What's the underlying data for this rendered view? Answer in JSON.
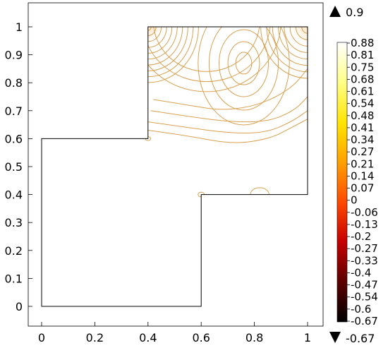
{
  "chart_data": {
    "type": "contour",
    "title": "",
    "xlabel": "",
    "ylabel": "",
    "x_ticks": [
      0,
      0.2,
      0.4,
      0.6,
      0.8,
      1
    ],
    "y_ticks": [
      0,
      0.1,
      0.2,
      0.3,
      0.4,
      0.5,
      0.6,
      0.7,
      0.8,
      0.9,
      1
    ],
    "x_tick_labels": [
      "0",
      "0.2",
      "0.4",
      "0.6",
      "0.8",
      "1"
    ],
    "y_tick_labels": [
      "0",
      "0.1",
      "0.2",
      "0.3",
      "0.4",
      "0.5",
      "0.6",
      "0.7",
      "0.8",
      "0.9",
      "1"
    ],
    "xlim": [
      -0.05,
      1.05
    ],
    "ylim": [
      -0.08,
      1.07
    ],
    "domain_outline": [
      [
        0,
        0
      ],
      [
        0.6,
        0
      ],
      [
        0.6,
        0.4
      ],
      [
        1,
        0.4
      ],
      [
        1,
        1
      ],
      [
        0.4,
        1
      ],
      [
        0.4,
        0.6
      ],
      [
        0,
        0.6
      ],
      [
        0,
        0
      ]
    ],
    "max_value": 0.9,
    "min_value": -0.67,
    "max_label": "0.9",
    "min_label": "-0.67",
    "colorbar_ticks": [
      "0.88",
      "0.81",
      "0.75",
      "0.68",
      "0.61",
      "0.54",
      "0.48",
      "0.41",
      "0.34",
      "0.27",
      "0.21",
      "0.14",
      "0.07",
      "0",
      "-0.06",
      "-0.13",
      "-0.2",
      "-0.27",
      "-0.33",
      "-0.4",
      "-0.47",
      "-0.54",
      "-0.6",
      "-0.67"
    ],
    "colorbar_range": [
      -0.67,
      0.88
    ],
    "colormap": [
      "#000000",
      "#5a0000",
      "#c80000",
      "#ff4a00",
      "#ffa000",
      "#ffe400",
      "#ffff8a",
      "#ffffff"
    ],
    "contour_color": "#d9a050",
    "contours": {
      "top_left_corner_rings": [
        0.012,
        0.03,
        0.05,
        0.07,
        0.09,
        0.11,
        0.13,
        0.15,
        0.17,
        0.19
      ],
      "top_right_corner_rings": [
        0.02,
        0.04,
        0.06,
        0.08,
        0.1,
        0.12,
        0.14,
        0.16
      ],
      "central_peak": {
        "x": 0.76,
        "y": 0.87
      },
      "central_rings": [
        0.03,
        0.055,
        0.08,
        0.105,
        0.13
      ],
      "bands": [
        [
          [
            0.42,
            0.74
          ],
          [
            0.55,
            0.72
          ],
          [
            0.68,
            0.7
          ],
          [
            0.82,
            0.72
          ],
          [
            0.94,
            0.78
          ],
          [
            1,
            0.85
          ]
        ],
        [
          [
            0.41,
            0.7
          ],
          [
            0.55,
            0.68
          ],
          [
            0.7,
            0.66
          ],
          [
            0.85,
            0.66
          ],
          [
            0.95,
            0.7
          ],
          [
            1,
            0.75
          ]
        ],
        [
          [
            0.4,
            0.66
          ],
          [
            0.55,
            0.64
          ],
          [
            0.7,
            0.62
          ],
          [
            0.84,
            0.62
          ],
          [
            0.94,
            0.66
          ],
          [
            1,
            0.7
          ]
        ],
        [
          [
            0.4,
            0.63
          ],
          [
            0.55,
            0.61
          ],
          [
            0.72,
            0.58
          ],
          [
            0.86,
            0.6
          ],
          [
            0.94,
            0.64
          ],
          [
            1,
            0.67
          ]
        ]
      ],
      "bottom_bumps": [
        {
          "x": 0.82,
          "y": 0.4,
          "r": 0.035
        },
        {
          "x": 0.6,
          "y": 0.4,
          "r": 0.012
        },
        {
          "x": 0.4,
          "y": 0.6,
          "r": 0.01
        }
      ]
    }
  }
}
